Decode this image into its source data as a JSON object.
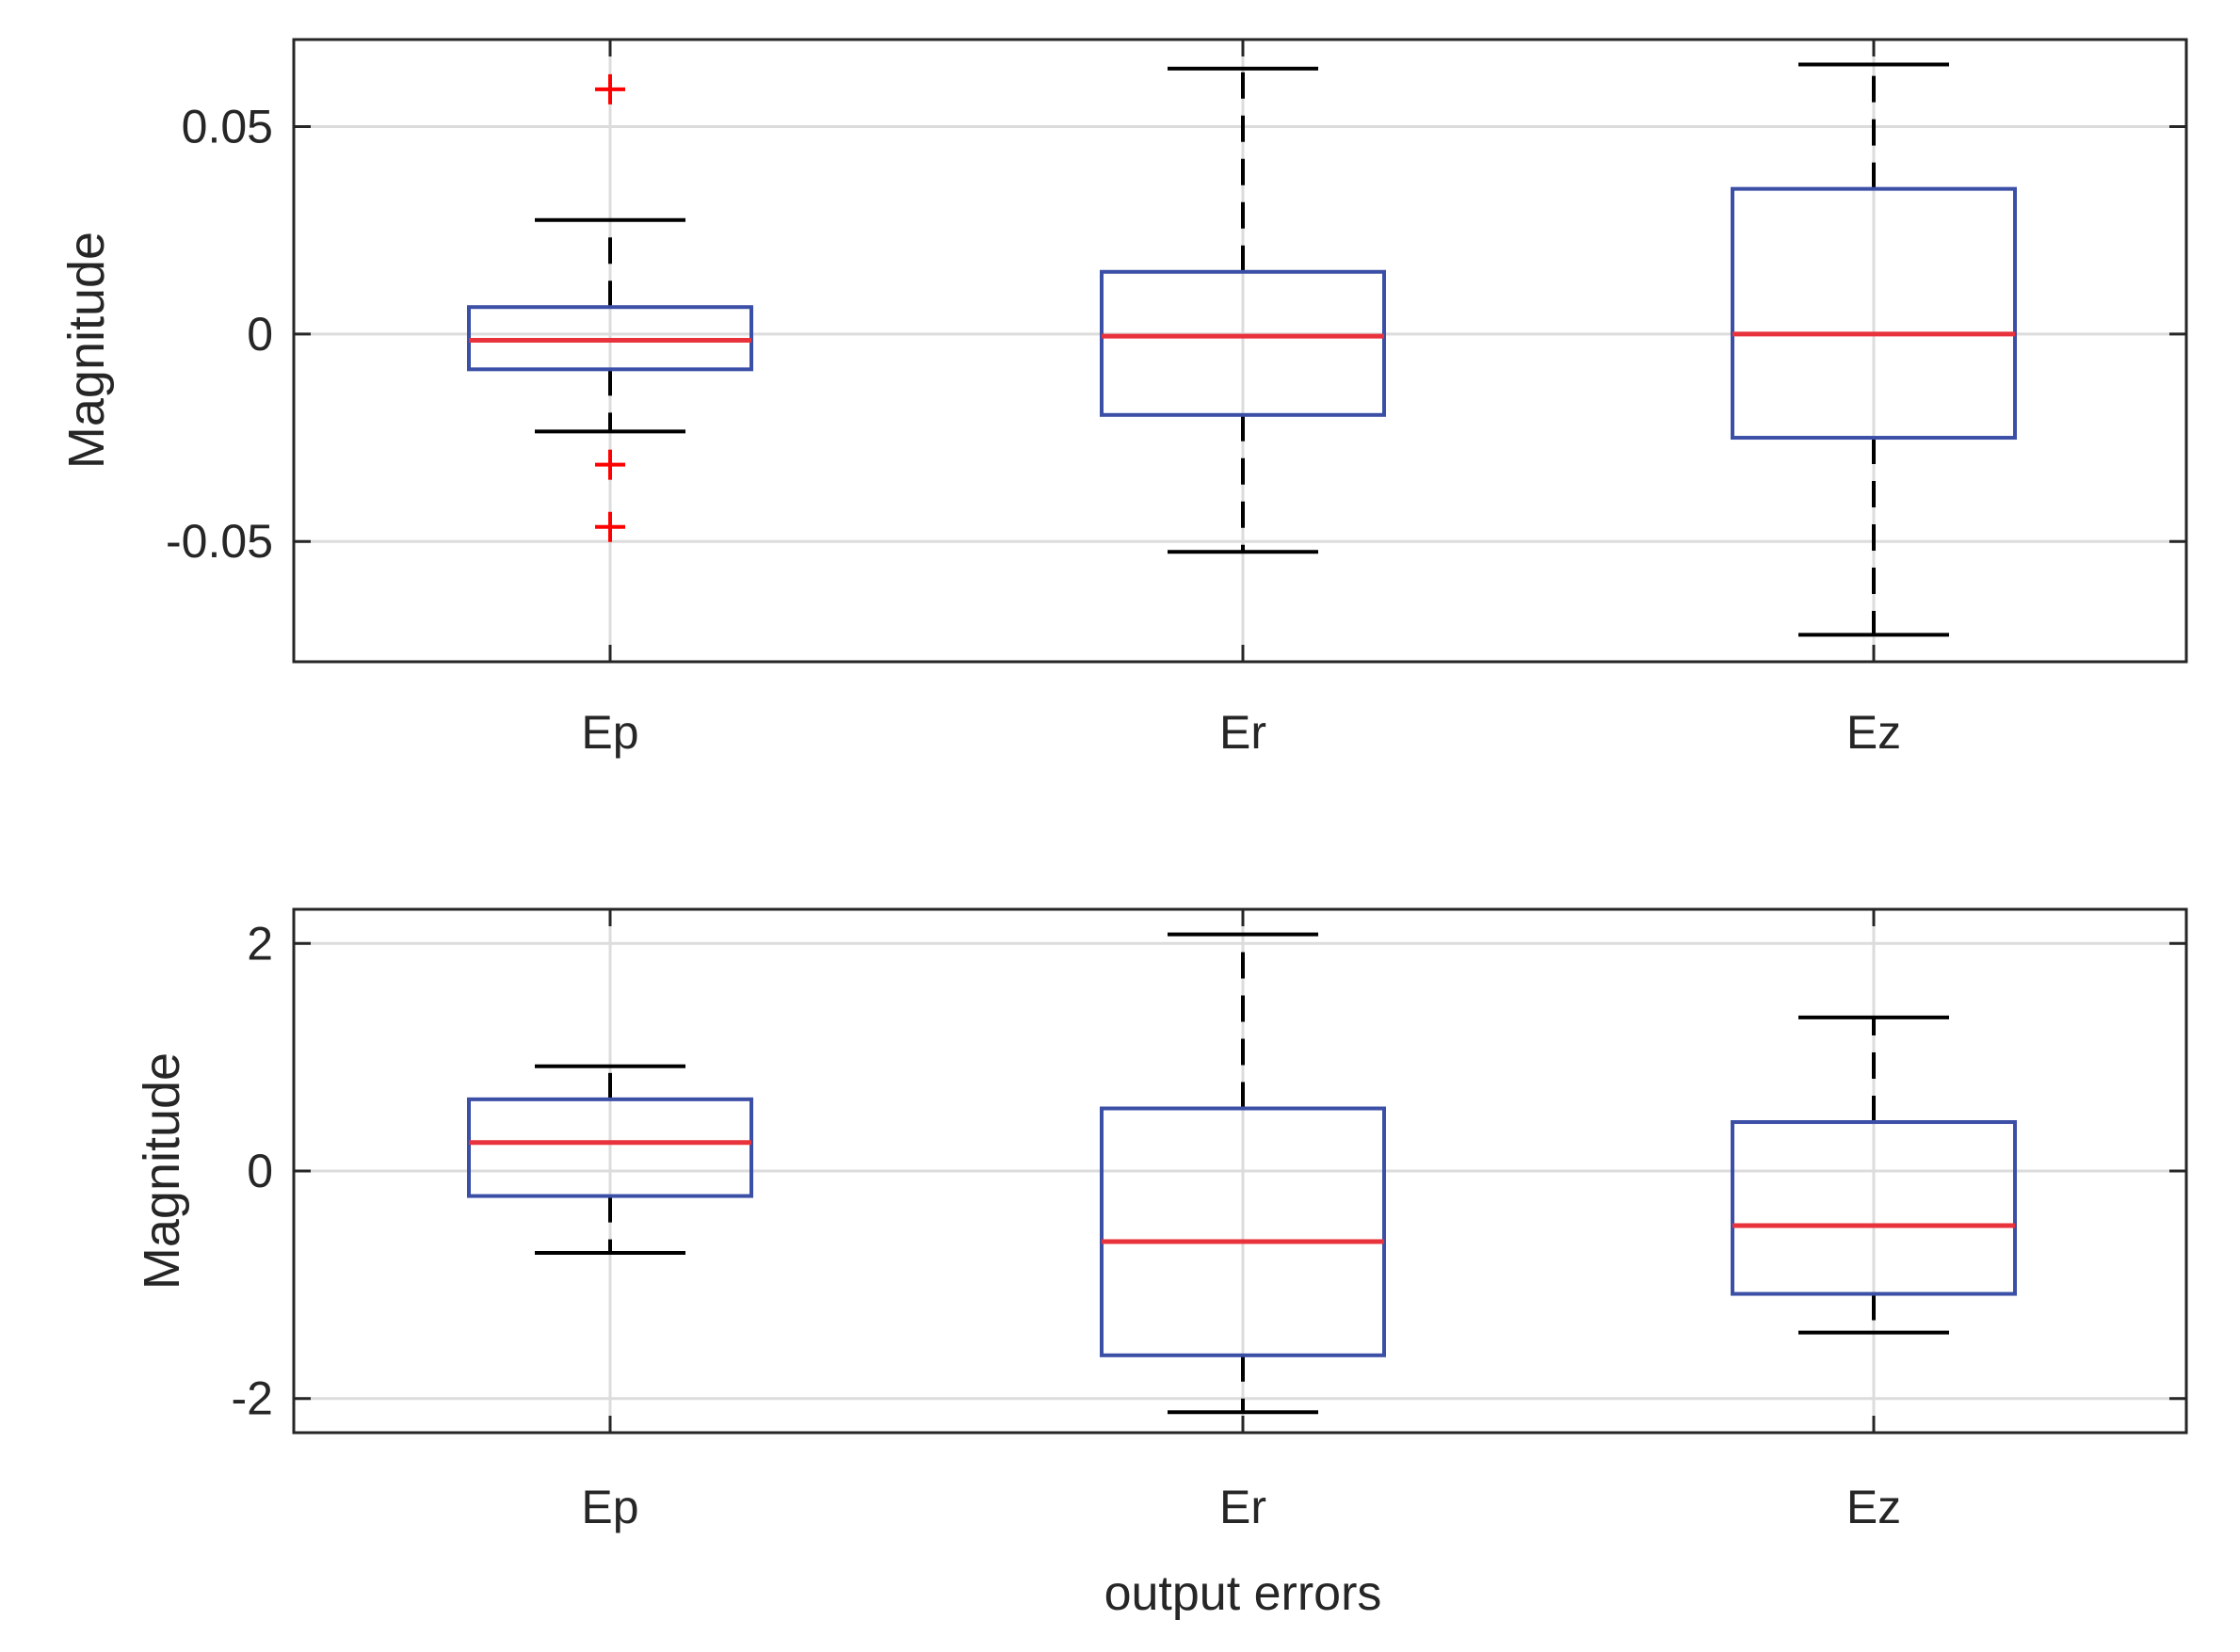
{
  "figure": {
    "xlabel": "output errors",
    "colors": {
      "box": "#3b4fa6",
      "median": "#e8323c",
      "whisker": "#000000",
      "outlier": "#ff0000",
      "grid": "#dcdcdc",
      "axes": "#262626"
    }
  },
  "chart_data": [
    {
      "type": "boxplot",
      "title": "",
      "xlabel": "",
      "ylabel": "Magnitude",
      "categories": [
        "Ep",
        "Er",
        "Ez"
      ],
      "ylim": [
        -0.079,
        0.071
      ],
      "yticks": [
        -0.05,
        0,
        0.05
      ],
      "ytick_labels": [
        "-0.05",
        "0",
        "0.05"
      ],
      "grid": true,
      "boxes": [
        {
          "category": "Ep",
          "whisker_low": -0.0235,
          "q1": -0.0085,
          "median": -0.0015,
          "q3": 0.0065,
          "whisker_high": 0.0275,
          "outliers": [
            0.059,
            -0.0315,
            -0.0465
          ]
        },
        {
          "category": "Er",
          "whisker_low": -0.0525,
          "q1": -0.0195,
          "median": -0.0005,
          "q3": 0.015,
          "whisker_high": 0.064,
          "outliers": []
        },
        {
          "category": "Ez",
          "whisker_low": -0.0725,
          "q1": -0.025,
          "median": 0.0,
          "q3": 0.035,
          "whisker_high": 0.065,
          "outliers": []
        }
      ]
    },
    {
      "type": "boxplot",
      "title": "",
      "xlabel": "output errors",
      "ylabel": "Magnitude",
      "categories": [
        "Ep",
        "Er",
        "Ez"
      ],
      "ylim": [
        -2.3,
        2.3
      ],
      "yticks": [
        -2,
        0,
        2
      ],
      "ytick_labels": [
        "-2",
        "0",
        "2"
      ],
      "grid": true,
      "boxes": [
        {
          "category": "Ep",
          "whisker_low": -0.72,
          "q1": -0.22,
          "median": 0.25,
          "q3": 0.63,
          "whisker_high": 0.92,
          "outliers": []
        },
        {
          "category": "Er",
          "whisker_low": -2.12,
          "q1": -1.62,
          "median": -0.62,
          "q3": 0.55,
          "whisker_high": 2.08,
          "outliers": []
        },
        {
          "category": "Ez",
          "whisker_low": -1.42,
          "q1": -1.08,
          "median": -0.48,
          "q3": 0.43,
          "whisker_high": 1.35,
          "outliers": []
        }
      ]
    }
  ]
}
